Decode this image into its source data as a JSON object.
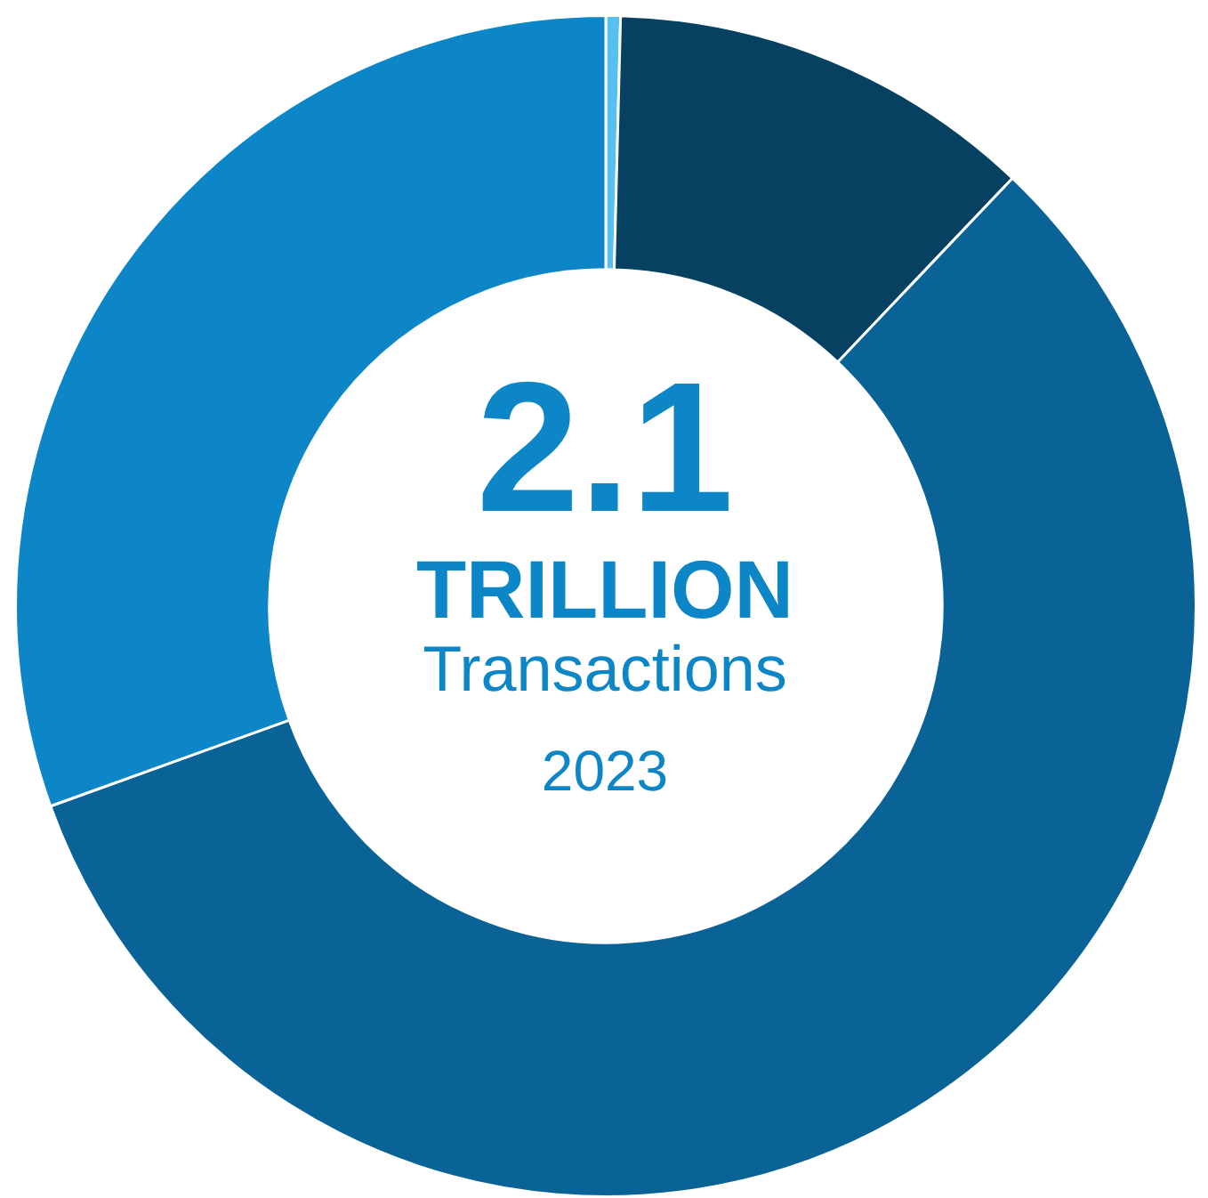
{
  "chart_data": {
    "type": "donut",
    "title": "2.1",
    "subtitle": "TRILLION",
    "annotations": [
      "Transactions",
      "2023"
    ],
    "categories": [
      null,
      null,
      null,
      null
    ],
    "values": [
      0.4,
      11.7,
      57.4,
      30.5
    ],
    "colors": [
      "#56c0f0",
      "#064162",
      "#0a6396",
      "#0d86c8"
    ],
    "legend": false
  }
}
